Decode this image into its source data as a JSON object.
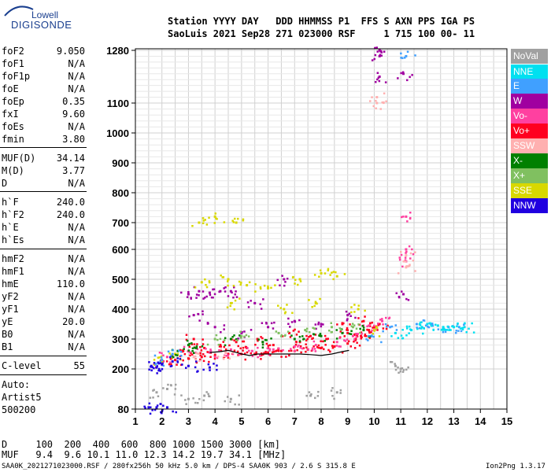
{
  "logo": {
    "line1": "Lowell",
    "line2": "DIGISONDE"
  },
  "header": {
    "line1": "Station YYYY DAY   DDD HHMMSS P1  FFS S AXN PPS IGA PS",
    "line2": "SaoLuis 2021 Sep28 271 023000 RSF     1 715 100 00- 11"
  },
  "params_group1": [
    {
      "name": "foF2",
      "value": "9.050"
    },
    {
      "name": "foF1",
      "value": "N/A"
    },
    {
      "name": "foF1p",
      "value": "N/A"
    },
    {
      "name": "foE",
      "value": "N/A"
    },
    {
      "name": "foEp",
      "value": "0.35"
    },
    {
      "name": "fxI",
      "value": "9.60"
    },
    {
      "name": "foEs",
      "value": "N/A"
    },
    {
      "name": "fmin",
      "value": "3.80"
    }
  ],
  "params_group2": [
    {
      "name": "MUF(D)",
      "value": "34.14"
    },
    {
      "name": "M(D)",
      "value": "3.77"
    },
    {
      "name": "D",
      "value": "N/A"
    }
  ],
  "params_group3": [
    {
      "name": "h`F",
      "value": "240.0"
    },
    {
      "name": "h`F2",
      "value": "240.0"
    },
    {
      "name": "h`E",
      "value": "N/A"
    },
    {
      "name": "h`Es",
      "value": "N/A"
    }
  ],
  "params_group4": [
    {
      "name": "hmF2",
      "value": "N/A"
    },
    {
      "name": "hmF1",
      "value": "N/A"
    },
    {
      "name": "hmE",
      "value": "110.0"
    },
    {
      "name": "yF2",
      "value": "N/A"
    },
    {
      "name": "yF1",
      "value": "N/A"
    },
    {
      "name": "yE",
      "value": "20.0"
    },
    {
      "name": "B0",
      "value": "N/A"
    },
    {
      "name": "B1",
      "value": "N/A"
    }
  ],
  "params_group5": [
    {
      "name": "C-level",
      "value": "55"
    }
  ],
  "auto": {
    "line1": "Auto:",
    "line2": "Artist5",
    "line3": "500200"
  },
  "legend": [
    {
      "label": "NoVal",
      "color": "#a0a0a0"
    },
    {
      "label": "NNE",
      "color": "#00e0f0"
    },
    {
      "label": "E",
      "color": "#40a0ff"
    },
    {
      "label": "W",
      "color": "#a000a0"
    },
    {
      "label": "Vo-",
      "color": "#ff40a0"
    },
    {
      "label": "Vo+",
      "color": "#ff0020"
    },
    {
      "label": "SSW",
      "color": "#ffb0b0"
    },
    {
      "label": "X-",
      "color": "#008000"
    },
    {
      "label": "X+",
      "color": "#80c060"
    },
    {
      "label": "SSE",
      "color": "#d8d800"
    },
    {
      "label": "NNW",
      "color": "#2000e0"
    }
  ],
  "footer": {
    "line1": "D     100  200  400  600  800 1000 1500 3000 [km]",
    "line2": "MUF   9.4  9.6 10.1 11.0 12.3 14.2 19.7 34.1 [MHz]",
    "line3": "SAA0K_2021271023000.RSF / 280fx256h 50 kHz 5.0 km / DPS-4 SAA0K 903 / 2.6 S 315.8 E",
    "version": "Ion2Png 1.3.17"
  },
  "chart_data": {
    "type": "scatter",
    "title": "",
    "xlabel": "",
    "ylabel": "",
    "xlim": [
      1,
      15
    ],
    "ylim": [
      80,
      1280
    ],
    "xticks": [
      "1",
      "2",
      "3",
      "4",
      "5",
      "6",
      "7",
      "8",
      "9",
      "10",
      "11",
      "12",
      "13",
      "14",
      "15"
    ],
    "yticks": [
      "80",
      "200",
      "300",
      "400",
      "500",
      "600",
      "700",
      "800",
      "900",
      "1000",
      "1100",
      "1280"
    ],
    "ytick_values": [
      80,
      200,
      300,
      400,
      500,
      600,
      700,
      800,
      900,
      1000,
      1100,
      1280
    ],
    "grid": true,
    "legend_position": "right",
    "series": [
      {
        "name": "Vo+",
        "color": "#ff0020",
        "points": [
          [
            2.0,
            220
          ],
          [
            2.5,
            230
          ],
          [
            3.0,
            235
          ],
          [
            3.5,
            240
          ],
          [
            4.0,
            245
          ],
          [
            4.5,
            250
          ],
          [
            5.0,
            250
          ],
          [
            5.5,
            250
          ],
          [
            6.0,
            255
          ],
          [
            6.5,
            260
          ],
          [
            7.0,
            260
          ],
          [
            7.5,
            265
          ],
          [
            8.0,
            270
          ],
          [
            8.5,
            275
          ],
          [
            9.0,
            285
          ],
          [
            9.3,
            300
          ],
          [
            9.5,
            310
          ],
          [
            9.8,
            330
          ],
          [
            10.0,
            340
          ],
          [
            10.2,
            350
          ],
          [
            3.2,
            300
          ],
          [
            4.2,
            280
          ],
          [
            5.2,
            270
          ],
          [
            6.2,
            280
          ],
          [
            7.2,
            290
          ],
          [
            8.2,
            300
          ],
          [
            9.0,
            320
          ],
          [
            6.8,
            320
          ],
          [
            7.6,
            310
          ],
          [
            8.8,
            350
          ],
          [
            9.6,
            360
          ],
          [
            5.6,
            300
          ],
          [
            4.8,
            290
          ],
          [
            3.6,
            270
          ],
          [
            2.8,
            260
          ]
        ]
      },
      {
        "name": "Vo-",
        "color": "#ff40a0",
        "points": [
          [
            2.2,
            240
          ],
          [
            3.0,
            260
          ],
          [
            3.8,
            255
          ],
          [
            4.6,
            265
          ],
          [
            5.4,
            260
          ],
          [
            6.2,
            265
          ],
          [
            7.0,
            275
          ],
          [
            7.8,
            280
          ],
          [
            8.6,
            290
          ],
          [
            9.2,
            310
          ],
          [
            9.8,
            345
          ],
          [
            10.3,
            360
          ],
          [
            11.2,
            560
          ],
          [
            11.2,
            600
          ],
          [
            11.2,
            720
          ]
        ]
      },
      {
        "name": "W",
        "color": "#a000a0",
        "points": [
          [
            3.0,
            450
          ],
          [
            3.4,
            460
          ],
          [
            3.8,
            455
          ],
          [
            4.2,
            460
          ],
          [
            4.6,
            460
          ],
          [
            3.2,
            380
          ],
          [
            4.0,
            340
          ],
          [
            5.0,
            320
          ],
          [
            6.0,
            340
          ],
          [
            7.0,
            360
          ],
          [
            8.0,
            350
          ],
          [
            9.0,
            380
          ],
          [
            10.2,
            1260
          ],
          [
            10.2,
            1280
          ],
          [
            10.2,
            1190
          ],
          [
            11.1,
            1200
          ],
          [
            11.1,
            450
          ],
          [
            6.6,
            500
          ],
          [
            5.5,
            420
          ]
        ]
      },
      {
        "name": "SSE",
        "color": "#d8d800",
        "points": [
          [
            3.5,
            490
          ],
          [
            4.5,
            500
          ],
          [
            5.2,
            480
          ],
          [
            6.0,
            470
          ],
          [
            7.2,
            500
          ],
          [
            8.0,
            520
          ],
          [
            8.6,
            510
          ],
          [
            9.4,
            400
          ],
          [
            10.0,
            330
          ],
          [
            6.6,
            400
          ],
          [
            7.8,
            420
          ],
          [
            4.6,
            420
          ],
          [
            3.4,
            700
          ],
          [
            4.0,
            720
          ],
          [
            4.8,
            700
          ],
          [
            2.0,
            230
          ],
          [
            2.5,
            250
          ]
        ]
      },
      {
        "name": "X-",
        "color": "#008000",
        "points": [
          [
            3.0,
            280
          ],
          [
            3.3,
            270
          ],
          [
            4.6,
            300
          ],
          [
            5.8,
            290
          ],
          [
            7.0,
            300
          ],
          [
            8.0,
            310
          ],
          [
            8.8,
            320
          ],
          [
            9.6,
            330
          ],
          [
            2.6,
            260
          ]
        ]
      },
      {
        "name": "X+",
        "color": "#80c060",
        "points": [
          [
            4.0,
            300
          ],
          [
            5.0,
            310
          ],
          [
            6.4,
            320
          ],
          [
            7.4,
            330
          ],
          [
            8.4,
            340
          ],
          [
            9.2,
            340
          ]
        ]
      },
      {
        "name": "E",
        "color": "#40a0ff",
        "points": [
          [
            2.0,
            230
          ],
          [
            2.4,
            250
          ],
          [
            11.6,
            350
          ],
          [
            12.2,
            345
          ],
          [
            12.8,
            340
          ],
          [
            13.2,
            340
          ],
          [
            11.2,
            1260
          ],
          [
            10.6,
            340
          ],
          [
            9.9,
            310
          ]
        ]
      },
      {
        "name": "NNE",
        "color": "#00e0f0",
        "points": [
          [
            11.8,
            340
          ],
          [
            12.0,
            350
          ],
          [
            12.4,
            345
          ],
          [
            12.6,
            340
          ],
          [
            13.0,
            340
          ],
          [
            13.4,
            340
          ],
          [
            10.8,
            320
          ],
          [
            11.4,
            330
          ]
        ]
      },
      {
        "name": "NNW",
        "color": "#2000e0",
        "points": [
          [
            1.6,
            210
          ],
          [
            1.8,
            205
          ],
          [
            2.0,
            215
          ],
          [
            1.5,
            85
          ],
          [
            1.8,
            85
          ],
          [
            2.2,
            85
          ],
          [
            2.4,
            225
          ],
          [
            3.0,
            210
          ],
          [
            3.8,
            205
          ]
        ]
      },
      {
        "name": "SSW",
        "color": "#ffb0b0",
        "points": [
          [
            10.1,
            1100
          ],
          [
            10.1,
            1120
          ],
          [
            11.2,
            540
          ],
          [
            11.2,
            580
          ],
          [
            3.2,
            240
          ],
          [
            4.4,
            255
          ]
        ]
      },
      {
        "name": "NoVal",
        "color": "#a0a0a0",
        "points": [
          [
            1.8,
            130
          ],
          [
            2.2,
            140
          ],
          [
            3.0,
            110
          ],
          [
            4.6,
            110
          ],
          [
            7.6,
            120
          ],
          [
            11.0,
            200
          ],
          [
            10.8,
            210
          ],
          [
            3.6,
            120
          ],
          [
            8.6,
            130
          ]
        ]
      }
    ],
    "trace": {
      "name": "h`F2 trace",
      "color": "#000000",
      "points": [
        [
          3.8,
          255
        ],
        [
          4.2,
          258
        ],
        [
          4.5,
          262
        ],
        [
          4.8,
          255
        ],
        [
          5.0,
          250
        ],
        [
          5.3,
          245
        ],
        [
          5.6,
          250
        ],
        [
          6.0,
          250
        ],
        [
          6.4,
          250
        ],
        [
          6.8,
          250
        ],
        [
          7.2,
          250
        ],
        [
          7.6,
          248
        ],
        [
          8.0,
          245
        ],
        [
          8.4,
          250
        ],
        [
          8.8,
          258
        ],
        [
          9.05,
          262
        ]
      ]
    }
  }
}
